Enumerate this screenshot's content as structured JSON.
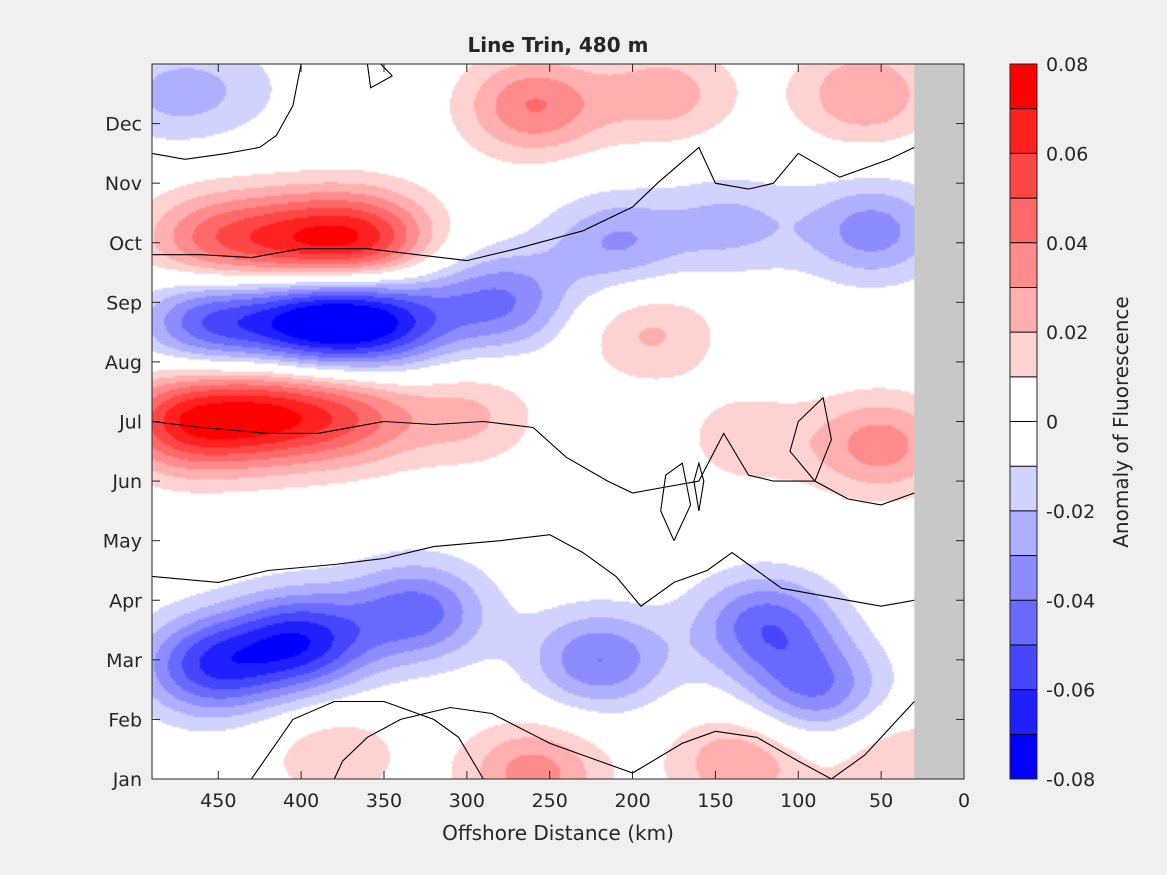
{
  "chart_data": {
    "type": "heatmap",
    "title": "Line Trin, 480 m",
    "xlabel": "Offshore Distance (km)",
    "ylabel": "",
    "x_ticks": [
      450,
      400,
      350,
      300,
      250,
      200,
      150,
      100,
      50,
      0
    ],
    "x_tick_labels": [
      "450",
      "400",
      "350",
      "300",
      "250",
      "200",
      "150",
      "100",
      "50",
      "0"
    ],
    "xlim": [
      490,
      0
    ],
    "x_reversed": true,
    "y_ticks": [
      0,
      1,
      2,
      3,
      4,
      5,
      6,
      7,
      8,
      9,
      10,
      11
    ],
    "y_tick_labels": [
      "Jan",
      "Feb",
      "Mar",
      "Apr",
      "May",
      "Jun",
      "Jul",
      "Aug",
      "Sep",
      "Oct",
      "Nov",
      "Dec"
    ],
    "ylim": [
      0,
      12
    ],
    "no_data_region": {
      "x_from": 30,
      "x_to": 0,
      "color": "#c8c8c8"
    },
    "colorbar": {
      "label": "Anomaly of Fluorescence",
      "clim": [
        -0.08,
        0.08
      ],
      "levels": [
        -0.08,
        -0.07,
        -0.06,
        -0.05,
        -0.04,
        -0.03,
        -0.02,
        -0.01,
        0,
        0.01,
        0.02,
        0.03,
        0.04,
        0.05,
        0.06,
        0.07,
        0.08
      ],
      "tick_values": [
        -0.08,
        -0.06,
        -0.04,
        -0.02,
        0,
        0.02,
        0.04,
        0.06,
        0.08
      ],
      "tick_labels": [
        "-0.08",
        "-0.06",
        "-0.04",
        "-0.02",
        "0",
        "0.02",
        "0.04",
        "0.06",
        "0.08"
      ],
      "colors": [
        "#0000ff",
        "#2020ff",
        "#4646ff",
        "#6969ff",
        "#8c8cff",
        "#afafff",
        "#d2d2ff",
        "#ffffff",
        "#ffffff",
        "#ffd2d2",
        "#ffafaf",
        "#ff8c8c",
        "#ff6969",
        "#ff4646",
        "#ff2020",
        "#ff0000"
      ]
    },
    "anomaly_features": [
      {
        "x": 360,
        "y": 9.0,
        "value": 0.058
      },
      {
        "x": 405,
        "y": 9.0,
        "value": 0.048
      },
      {
        "x": 455,
        "y": 9.0,
        "value": 0.04
      },
      {
        "x": 260,
        "y": 11.3,
        "value": 0.04
      },
      {
        "x": 180,
        "y": 11.5,
        "value": 0.025
      },
      {
        "x": 60,
        "y": 11.5,
        "value": 0.03
      },
      {
        "x": 480,
        "y": 11.5,
        "value": -0.02
      },
      {
        "x": 440,
        "y": 11.6,
        "value": -0.01
      },
      {
        "x": 470,
        "y": 6.0,
        "value": 0.06
      },
      {
        "x": 420,
        "y": 6.1,
        "value": 0.055
      },
      {
        "x": 370,
        "y": 6.1,
        "value": 0.04
      },
      {
        "x": 300,
        "y": 6.1,
        "value": 0.022
      },
      {
        "x": 130,
        "y": 5.7,
        "value": 0.016
      },
      {
        "x": 50,
        "y": 5.6,
        "value": 0.035
      },
      {
        "x": 395,
        "y": 7.7,
        "value": -0.068
      },
      {
        "x": 350,
        "y": 7.7,
        "value": -0.06
      },
      {
        "x": 455,
        "y": 7.7,
        "value": -0.05
      },
      {
        "x": 280,
        "y": 8.0,
        "value": -0.04
      },
      {
        "x": 210,
        "y": 9.0,
        "value": -0.03
      },
      {
        "x": 140,
        "y": 9.3,
        "value": -0.022
      },
      {
        "x": 55,
        "y": 9.2,
        "value": -0.035
      },
      {
        "x": 190,
        "y": 7.5,
        "value": 0.022
      },
      {
        "x": 400,
        "y": 2.3,
        "value": -0.062
      },
      {
        "x": 455,
        "y": 1.9,
        "value": -0.055
      },
      {
        "x": 330,
        "y": 2.8,
        "value": -0.045
      },
      {
        "x": 220,
        "y": 2.0,
        "value": -0.04
      },
      {
        "x": 120,
        "y": 2.6,
        "value": -0.045
      },
      {
        "x": 90,
        "y": 1.5,
        "value": -0.04
      },
      {
        "x": 260,
        "y": 0.1,
        "value": 0.035
      },
      {
        "x": 135,
        "y": 0.3,
        "value": 0.03
      },
      {
        "x": 380,
        "y": 0.4,
        "value": 0.018
      },
      {
        "x": 40,
        "y": 0.3,
        "value": 0.02
      }
    ],
    "field_scale": {
      "x_km": 30,
      "y_months": 0.6
    },
    "zero_contours": [
      [
        [
          490,
          10.5
        ],
        [
          470,
          10.4
        ],
        [
          445,
          10.5
        ],
        [
          425,
          10.6
        ],
        [
          415,
          10.8
        ],
        [
          405,
          11.3
        ],
        [
          400,
          12.5
        ]
      ],
      [
        [
          490,
          8.8
        ],
        [
          460,
          8.8
        ],
        [
          430,
          8.75
        ],
        [
          400,
          8.9
        ],
        [
          360,
          8.9
        ],
        [
          330,
          8.8
        ],
        [
          300,
          8.7
        ],
        [
          270,
          8.9
        ],
        [
          230,
          9.2
        ],
        [
          200,
          9.6
        ],
        [
          185,
          10.0
        ],
        [
          160,
          10.6
        ],
        [
          150,
          10.0
        ],
        [
          130,
          9.9
        ],
        [
          115,
          10.0
        ],
        [
          100,
          10.5
        ],
        [
          75,
          10.1
        ],
        [
          45,
          10.4
        ],
        [
          30,
          10.6
        ]
      ],
      [
        [
          490,
          6.0
        ],
        [
          460,
          5.9
        ],
        [
          420,
          5.8
        ],
        [
          390,
          5.8
        ],
        [
          350,
          6.0
        ],
        [
          320,
          5.95
        ],
        [
          290,
          6.0
        ],
        [
          260,
          5.9
        ],
        [
          240,
          5.4
        ],
        [
          215,
          5.0
        ],
        [
          200,
          4.8
        ],
        [
          180,
          4.9
        ],
        [
          160,
          5.0
        ],
        [
          145,
          5.8
        ],
        [
          130,
          5.1
        ],
        [
          115,
          5.0
        ],
        [
          100,
          5.0
        ],
        [
          90,
          5.0
        ],
        [
          70,
          4.7
        ],
        [
          50,
          4.6
        ],
        [
          30,
          4.8
        ]
      ],
      [
        [
          490,
          3.4
        ],
        [
          450,
          3.3
        ],
        [
          420,
          3.5
        ],
        [
          380,
          3.6
        ],
        [
          350,
          3.7
        ],
        [
          320,
          3.9
        ],
        [
          280,
          4.0
        ],
        [
          250,
          4.1
        ],
        [
          230,
          3.8
        ],
        [
          210,
          3.4
        ],
        [
          195,
          2.9
        ],
        [
          175,
          3.3
        ],
        [
          155,
          3.5
        ],
        [
          140,
          3.8
        ],
        [
          125,
          3.5
        ],
        [
          110,
          3.2
        ],
        [
          90,
          3.1
        ],
        [
          70,
          3.0
        ],
        [
          50,
          2.9
        ],
        [
          30,
          3.0
        ]
      ],
      [
        [
          290,
          0
        ],
        [
          305,
          0.7
        ],
        [
          320,
          1.0
        ],
        [
          350,
          1.3
        ],
        [
          380,
          1.3
        ],
        [
          405,
          1.0
        ],
        [
          420,
          0.4
        ],
        [
          430,
          0
        ]
      ],
      [
        [
          30,
          1.3
        ],
        [
          60,
          0.4
        ],
        [
          80,
          0
        ],
        [
          100,
          0.3
        ],
        [
          125,
          0.7
        ],
        [
          150,
          0.8
        ],
        [
          170,
          0.6
        ],
        [
          200,
          0.1
        ],
        [
          220,
          0.3
        ],
        [
          250,
          0.6
        ],
        [
          285,
          1.1
        ],
        [
          310,
          1.2
        ],
        [
          340,
          1.0
        ],
        [
          360,
          0.7
        ],
        [
          375,
          0.3
        ],
        [
          380,
          0
        ]
      ],
      [
        [
          175,
          4.0
        ],
        [
          165,
          4.6
        ],
        [
          170,
          5.3
        ],
        [
          180,
          5.1
        ],
        [
          183,
          4.5
        ],
        [
          175,
          4.0
        ]
      ],
      [
        [
          160,
          4.5
        ],
        [
          157,
          5.0
        ],
        [
          160,
          5.3
        ],
        [
          163,
          5.0
        ],
        [
          160,
          4.5
        ]
      ],
      [
        [
          90,
          5.0
        ],
        [
          80,
          5.7
        ],
        [
          85,
          6.4
        ],
        [
          100,
          6.0
        ],
        [
          105,
          5.5
        ],
        [
          90,
          5.0
        ]
      ],
      [
        [
          345,
          11.8
        ],
        [
          352,
          12.4
        ],
        [
          360,
          12.2
        ],
        [
          358,
          11.6
        ],
        [
          345,
          11.8
        ]
      ]
    ]
  }
}
